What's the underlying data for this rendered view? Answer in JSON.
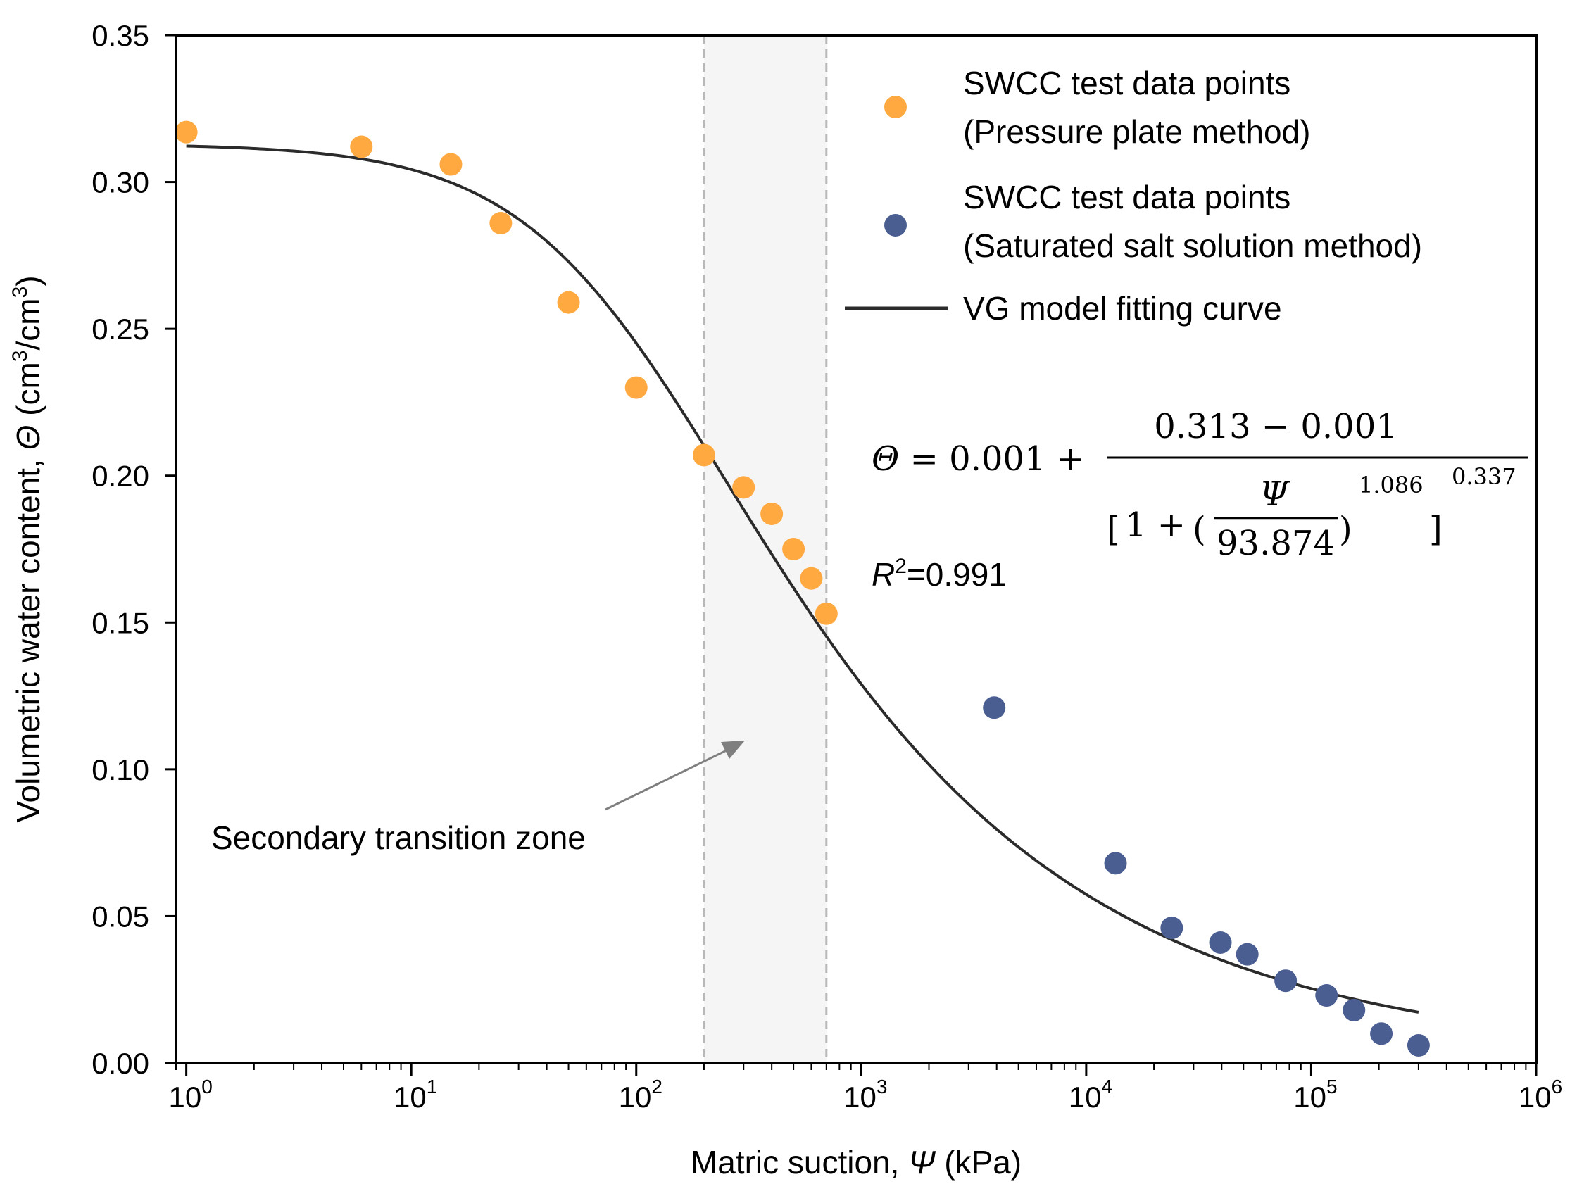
{
  "chart_data": {
    "type": "scatter",
    "title": "",
    "xlabel_prefix": "Matric suction, ",
    "xlabel_symbol": "Ψ",
    "xlabel_suffix": " (kPa)",
    "ylabel_prefix": "Volumetric water content, ",
    "ylabel_symbol": "Θ",
    "ylabel_unit_open": " (cm",
    "ylabel_unit_sup1": "3",
    "ylabel_unit_mid": "/cm",
    "ylabel_unit_sup2": "3",
    "ylabel_unit_close": ")",
    "xscale": "log",
    "xlim": [
      0.9,
      1000000
    ],
    "ylim": [
      0,
      0.35
    ],
    "yticks": [
      "0.00",
      "0.05",
      "0.10",
      "0.15",
      "0.20",
      "0.25",
      "0.30",
      "0.35"
    ],
    "yticks_values": [
      0,
      0.05,
      0.1,
      0.15,
      0.2,
      0.25,
      0.3,
      0.35
    ],
    "xticks_base": "10",
    "xticks_exponents": [
      "0",
      "1",
      "2",
      "3",
      "4",
      "5",
      "6"
    ],
    "series": [
      {
        "name": "SWCC test data points (Pressure plate method)",
        "legend_line1": "SWCC test data points",
        "legend_line2": "(Pressure plate method)",
        "color": "#FFA940",
        "x": [
          1,
          6,
          15,
          25,
          50,
          100,
          200,
          300,
          400,
          500,
          600,
          700
        ],
        "y": [
          0.317,
          0.312,
          0.306,
          0.286,
          0.259,
          0.23,
          0.207,
          0.196,
          0.187,
          0.175,
          0.165,
          0.153
        ]
      },
      {
        "name": "SWCC test data points (Saturated salt solution method)",
        "legend_line1": "SWCC test data points",
        "legend_line2": "(Saturated salt solution method)",
        "color": "#4A5E91",
        "x": [
          3900,
          13500,
          24000,
          39500,
          52000,
          77000,
          117000,
          155000,
          205000,
          300000
        ],
        "y": [
          0.121,
          0.068,
          0.046,
          0.041,
          0.037,
          0.028,
          0.023,
          0.018,
          0.01,
          0.006
        ]
      }
    ],
    "fit": {
      "name": "VG model fitting curve",
      "color": "#2b2b2b",
      "theta_r": 0.001,
      "theta_s": 0.313,
      "a": 93.874,
      "n": 1.086,
      "m": 0.337,
      "x_range": [
        1,
        300000
      ]
    },
    "shaded_zone": {
      "x_range": [
        200,
        700
      ],
      "label": "Secondary transition zone"
    },
    "equation": {
      "lhs": "Θ = 0.001 +",
      "numerator": "0.313 − 0.001",
      "bracket_open": "[",
      "one_plus": "1 + ",
      "paren_open": "(",
      "frac_num": "Ψ",
      "frac_den": "93.874",
      "paren_close": ")",
      "exp_inner": "1.086",
      "bracket_close": "]",
      "exp_outer": "0.337"
    },
    "r2_symbol": "R",
    "r2_sup": "2",
    "r2_value": "=0.991",
    "legend_position": "top-right"
  }
}
